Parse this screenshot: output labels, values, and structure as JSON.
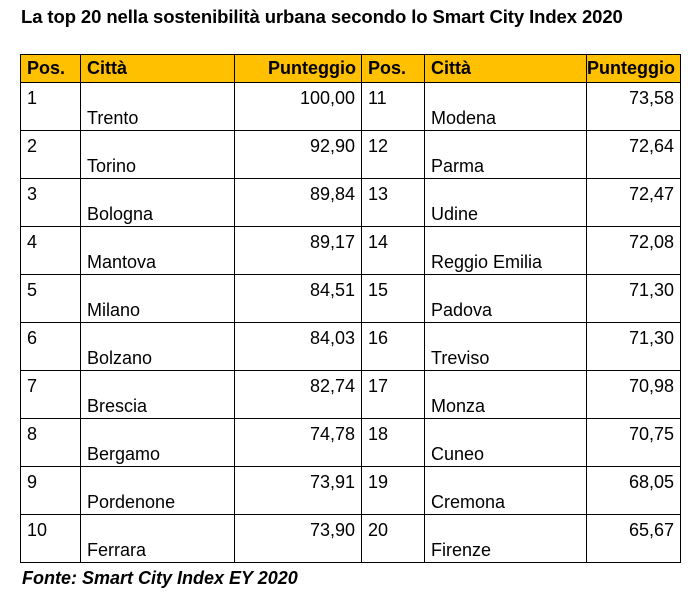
{
  "title": "La top 20 nella sostenibilità urbana secondo lo Smart City Index 2020",
  "headers": {
    "pos": "Pos.",
    "city": "Città",
    "score": "Punteggio"
  },
  "rows": [
    {
      "left": {
        "pos": "1",
        "city": "Trento",
        "score": "100,00"
      },
      "right": {
        "pos": "11",
        "city": "Modena",
        "score": "73,58"
      }
    },
    {
      "left": {
        "pos": "2",
        "city": "Torino",
        "score": "92,90"
      },
      "right": {
        "pos": "12",
        "city": "Parma",
        "score": "72,64"
      }
    },
    {
      "left": {
        "pos": "3",
        "city": "Bologna",
        "score": "89,84"
      },
      "right": {
        "pos": "13",
        "city": "Udine",
        "score": "72,47"
      }
    },
    {
      "left": {
        "pos": "4",
        "city": "Mantova",
        "score": "89,17"
      },
      "right": {
        "pos": "14",
        "city": "Reggio Emilia",
        "score": "72,08"
      }
    },
    {
      "left": {
        "pos": "5",
        "city": "Milano",
        "score": "84,51"
      },
      "right": {
        "pos": "15",
        "city": "Padova",
        "score": "71,30"
      }
    },
    {
      "left": {
        "pos": "6",
        "city": "Bolzano",
        "score": "84,03"
      },
      "right": {
        "pos": "16",
        "city": "Treviso",
        "score": "71,30"
      }
    },
    {
      "left": {
        "pos": "7",
        "city": "Brescia",
        "score": "82,74"
      },
      "right": {
        "pos": "17",
        "city": "Monza",
        "score": "70,98"
      }
    },
    {
      "left": {
        "pos": "8",
        "city": "Bergamo",
        "score": "74,78"
      },
      "right": {
        "pos": "18",
        "city": "Cuneo",
        "score": "70,75"
      }
    },
    {
      "left": {
        "pos": "9",
        "city": "Pordenone",
        "score": "73,91"
      },
      "right": {
        "pos": "19",
        "city": "Cremona",
        "score": "68,05"
      }
    },
    {
      "left": {
        "pos": "10",
        "city": "Ferrara",
        "score": "73,90"
      },
      "right": {
        "pos": "20",
        "city": "Firenze",
        "score": "65,67"
      }
    }
  ],
  "source": "Fonte: Smart City Index EY 2020",
  "colors": {
    "header_bg": "#ffc000",
    "border": "#000000",
    "text": "#000000"
  }
}
